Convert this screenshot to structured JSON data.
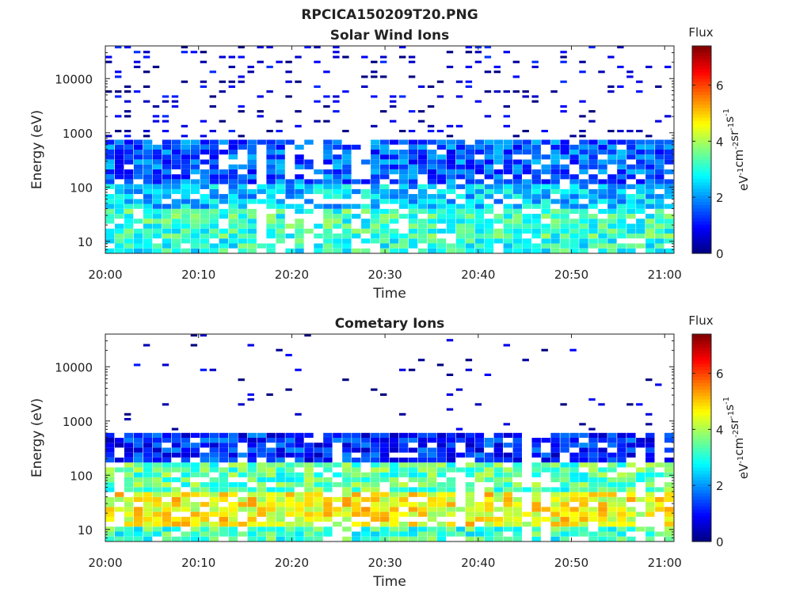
{
  "figure": {
    "title": "RPCICA150209T20.PNG"
  },
  "chart_data": [
    {
      "type": "heatmap",
      "title": "Solar Wind Ions",
      "xlabel": "Time",
      "ylabel": "Energy (eV)",
      "x_ticks": [
        "20:00",
        "20:10",
        "20:20",
        "20:30",
        "20:40",
        "20:50",
        "21:00"
      ],
      "xlim": [
        "20:00",
        "21:01"
      ],
      "y_ticks": [
        "10",
        "100",
        "1000",
        "10000"
      ],
      "ylim": [
        6,
        40000
      ],
      "y_scale": "log",
      "colorbar": {
        "title": "Flux",
        "label": "eV⁻¹cm⁻²sr⁻¹s⁻¹",
        "ticks": [
          "0",
          "2",
          "4",
          "6"
        ],
        "range": [
          0,
          7.4
        ],
        "colormap": "jet"
      },
      "flux_bands": [
        {
          "emin": 6,
          "emax": 12,
          "flux": 3.0
        },
        {
          "emin": 12,
          "emax": 40,
          "flux": 3.2
        },
        {
          "emin": 40,
          "emax": 120,
          "flux": 2.4
        },
        {
          "emin": 120,
          "emax": 700,
          "flux": 1.6
        },
        {
          "emin": 700,
          "emax": 40000,
          "flux": 0.5
        }
      ]
    },
    {
      "type": "heatmap",
      "title": "Cometary Ions",
      "xlabel": "Time",
      "ylabel": "Energy (eV)",
      "x_ticks": [
        "20:00",
        "20:10",
        "20:20",
        "20:30",
        "20:40",
        "20:50",
        "21:00"
      ],
      "xlim": [
        "20:00",
        "21:01"
      ],
      "y_ticks": [
        "10",
        "100",
        "1000",
        "10000"
      ],
      "ylim": [
        6,
        40000
      ],
      "y_scale": "log",
      "colorbar": {
        "title": "Flux",
        "label": "eV⁻¹cm⁻²sr⁻¹s⁻¹",
        "ticks": [
          "0",
          "2",
          "4",
          "6"
        ],
        "range": [
          0,
          7.4
        ],
        "colormap": "jet"
      },
      "flux_bands": [
        {
          "emin": 6,
          "emax": 12,
          "flux": 3.2
        },
        {
          "emin": 12,
          "emax": 45,
          "flux": 4.6
        },
        {
          "emin": 45,
          "emax": 160,
          "flux": 3.4
        },
        {
          "emin": 160,
          "emax": 600,
          "flux": 1.2
        },
        {
          "emin": 600,
          "emax": 40000,
          "flux": 0.3
        }
      ]
    }
  ]
}
